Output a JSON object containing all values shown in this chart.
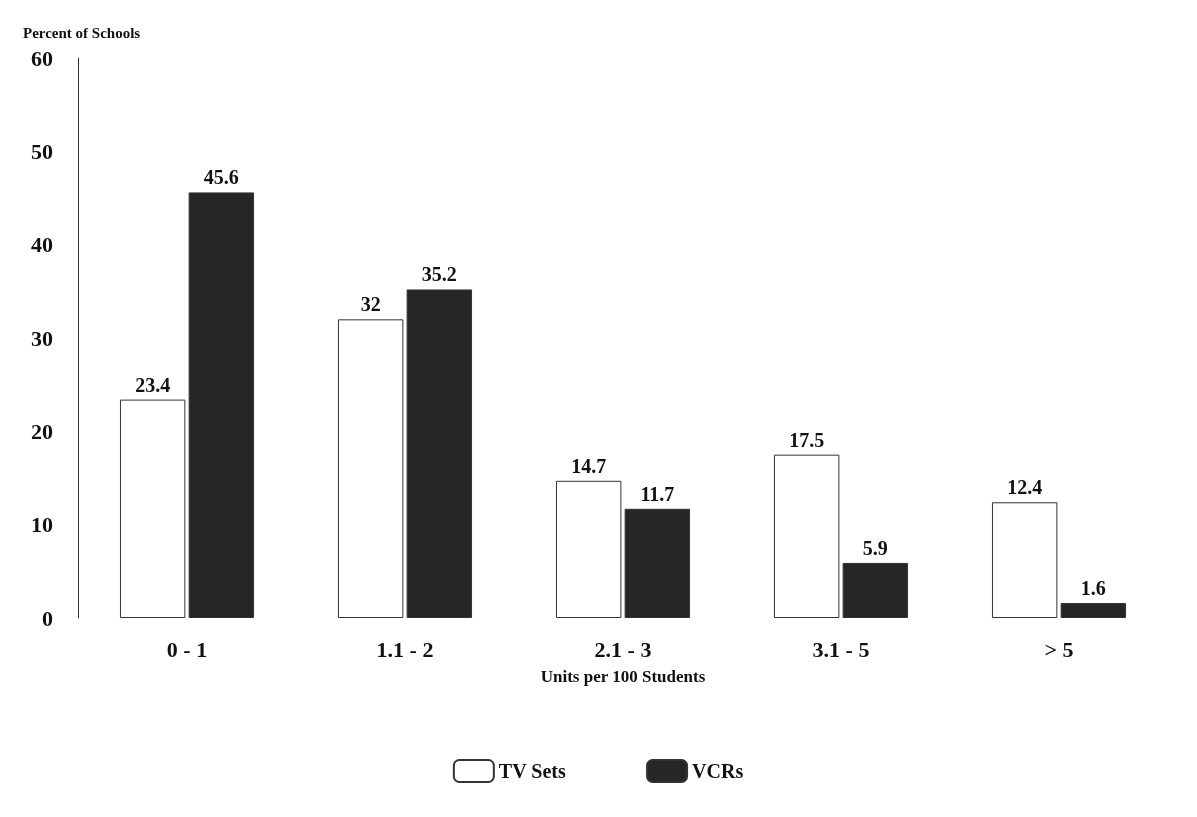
{
  "chart_data": {
    "type": "bar",
    "ylabel": "Percent of Schools",
    "xlabel": "Units per 100 Students",
    "categories": [
      "0 - 1",
      "1.1 - 2",
      "2.1 - 3",
      "3.1 - 5",
      "> 5"
    ],
    "series": [
      {
        "name": "TV Sets",
        "color": "#ffffff",
        "values": [
          23.4,
          32,
          14.7,
          17.5,
          12.4
        ]
      },
      {
        "name": "VCRs",
        "color": "#262626",
        "values": [
          45.6,
          35.2,
          11.7,
          5.9,
          1.6
        ]
      }
    ],
    "ylim": [
      0,
      60
    ],
    "yticks": [
      0,
      10,
      20,
      30,
      40,
      50,
      60
    ],
    "grid": false,
    "legend": "bottom",
    "data_labels": true
  }
}
